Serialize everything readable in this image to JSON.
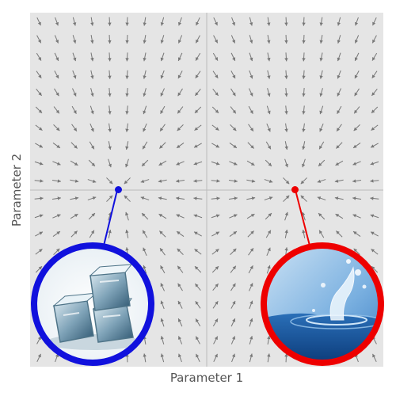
{
  "chart_data": {
    "type": "vector-field",
    "title": "",
    "xlabel": "Parameter 1",
    "ylabel": "Parameter 2",
    "xlim": [
      -1,
      1
    ],
    "ylim": [
      -1,
      1
    ],
    "grid": false,
    "background_color": "#e5e5e5",
    "arrow_color": "#777777",
    "crosshair": {
      "x": 0,
      "y": 0
    },
    "field": {
      "type": "two-attractors",
      "attractors": [
        [
          -0.5,
          0
        ],
        [
          0.5,
          0
        ]
      ]
    },
    "points": [
      {
        "name": "",
        "x": -0.5,
        "y": 0,
        "color": "#1111dd",
        "image": "ice-cubes-icon"
      },
      {
        "name": "",
        "x": 0.5,
        "y": 0,
        "color": "#ee0000",
        "image": "water-splash-icon"
      }
    ]
  }
}
